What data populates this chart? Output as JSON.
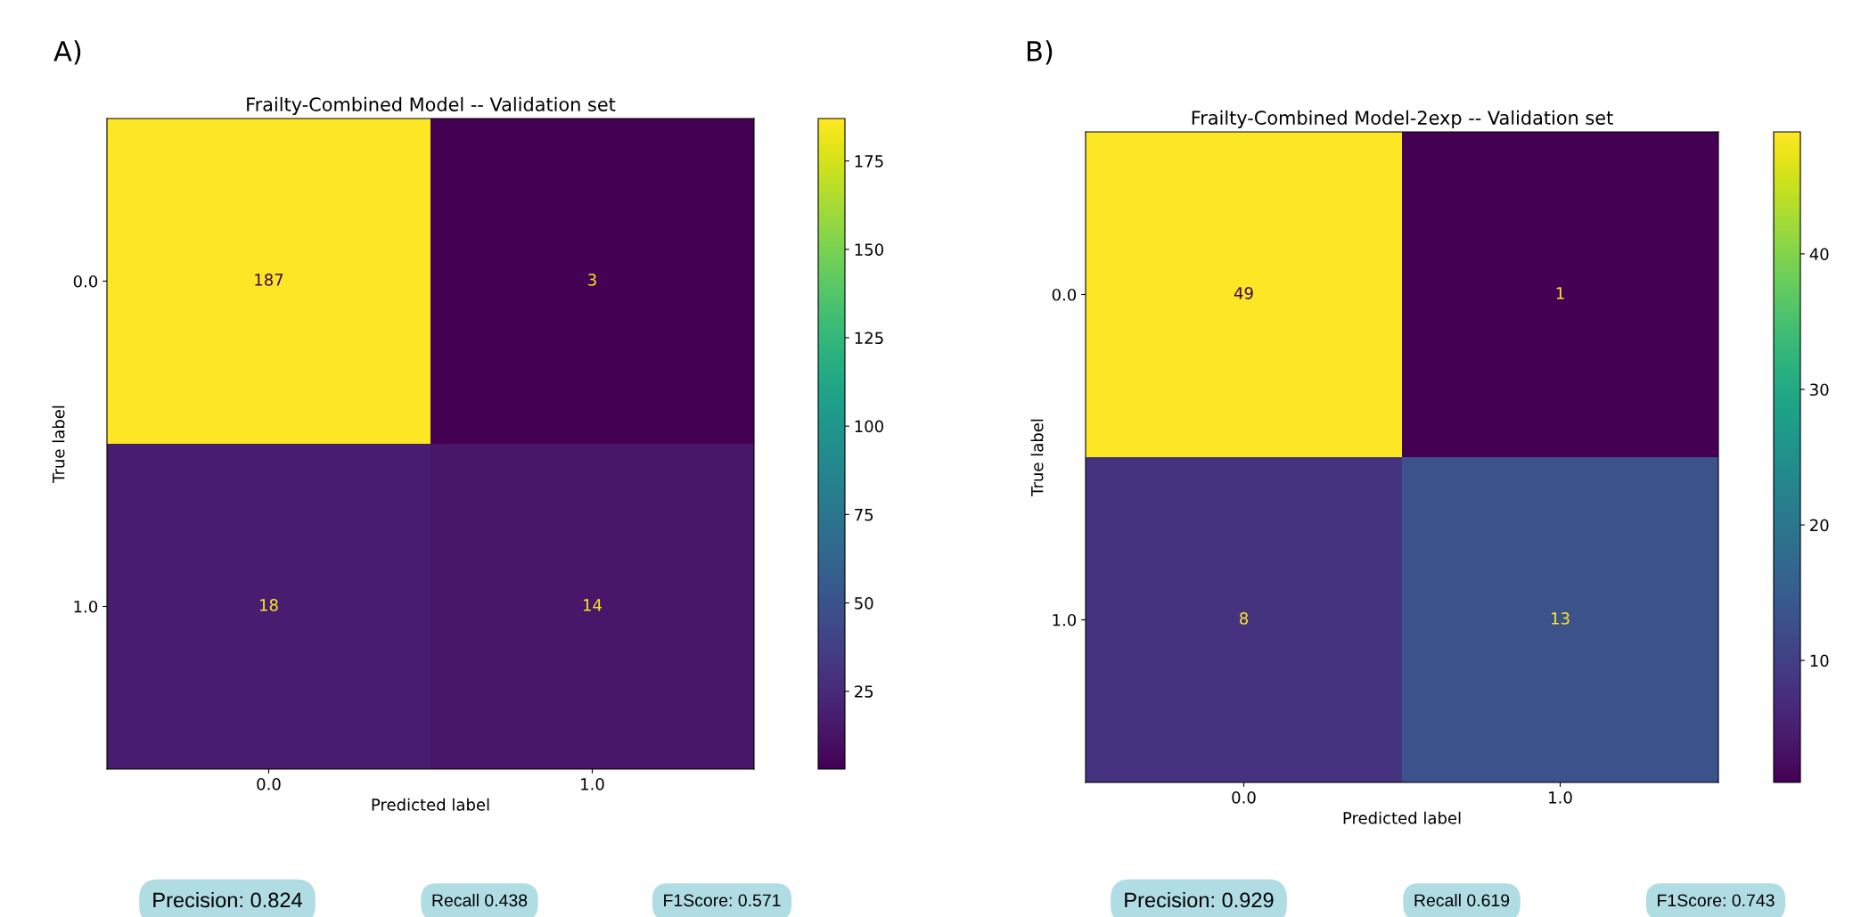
{
  "chart_data": [
    {
      "type": "heatmap",
      "title": "Frailty-Combined Model -- Validation set",
      "xlabel": "Predicted label",
      "ylabel": "True label",
      "categories": [
        "0.0",
        "1.0"
      ],
      "y_categories": [
        "0.0",
        "1.0"
      ],
      "cells": [
        [
          187,
          3
        ],
        [
          18,
          14
        ]
      ],
      "clim": [
        3,
        187
      ],
      "cticks": [
        25,
        50,
        75,
        100,
        125,
        150,
        175
      ],
      "data_labels": true,
      "annotations": [
        "A)",
        "Precision: 0.824",
        "Recall 0.438",
        "F1Score: 0.571"
      ]
    },
    {
      "type": "heatmap",
      "title": "Frailty-Combined Model-2exp -- Validation set",
      "xlabel": "Predicted label",
      "ylabel": "True label",
      "categories": [
        "0.0",
        "1.0"
      ],
      "y_categories": [
        "0.0",
        "1.0"
      ],
      "cells": [
        [
          49,
          1
        ],
        [
          8,
          13
        ]
      ],
      "clim": [
        1,
        49
      ],
      "cticks": [
        10,
        20,
        30,
        40
      ],
      "data_labels": true,
      "annotations": [
        "B)",
        "Precision: 0.929",
        "Recall 0.619",
        "F1Score: 0.743"
      ]
    }
  ]
}
